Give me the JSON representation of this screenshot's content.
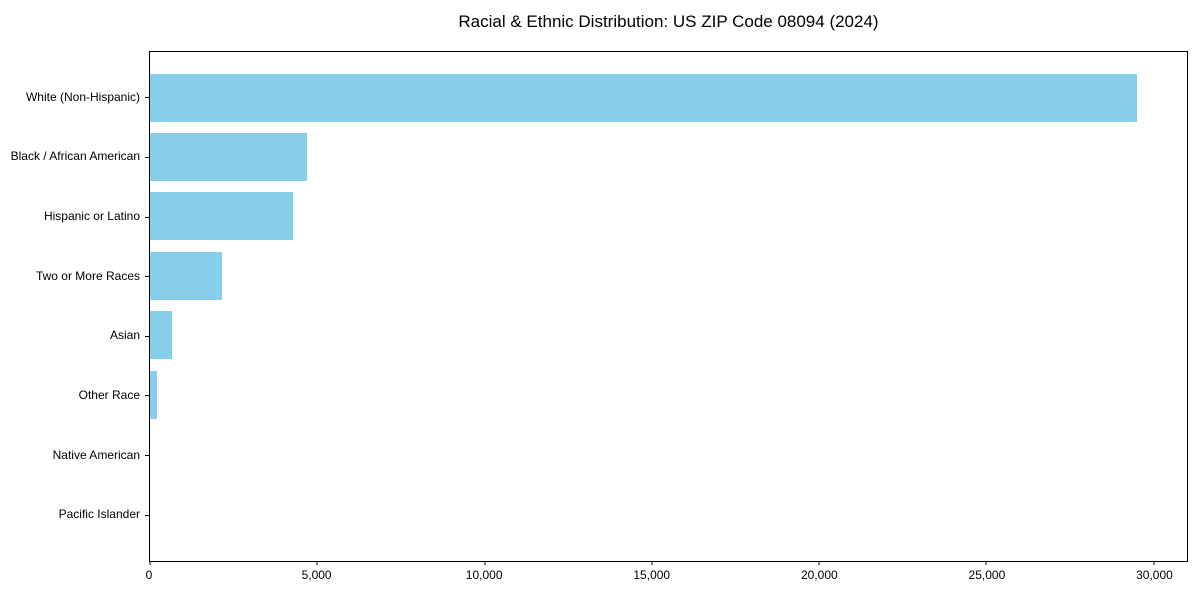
{
  "figure": {
    "background": "#ffffff"
  },
  "chart_data": {
    "type": "bar",
    "orientation": "horizontal",
    "title": "Racial & Ethnic Distribution: US ZIP Code 08094 (2024)",
    "categories": [
      "White (Non-Hispanic)",
      "Black / African American",
      "Hispanic or Latino",
      "Two or More Races",
      "Asian",
      "Other Race",
      "Native American",
      "Pacific Islander"
    ],
    "values": [
      29500,
      4700,
      4270,
      2150,
      650,
      210,
      0,
      0
    ],
    "xlabel": "",
    "ylabel": "",
    "xlim": [
      0,
      31000
    ],
    "x_ticks": [
      0,
      5000,
      10000,
      15000,
      20000,
      25000,
      30000
    ],
    "x_tick_labels": [
      "0",
      "5,000",
      "10,000",
      "15,000",
      "20,000",
      "25,000",
      "30,000"
    ],
    "bar_color": "#87CEEB",
    "axis_color": "#000000",
    "grid": false,
    "legend_position": "none"
  }
}
